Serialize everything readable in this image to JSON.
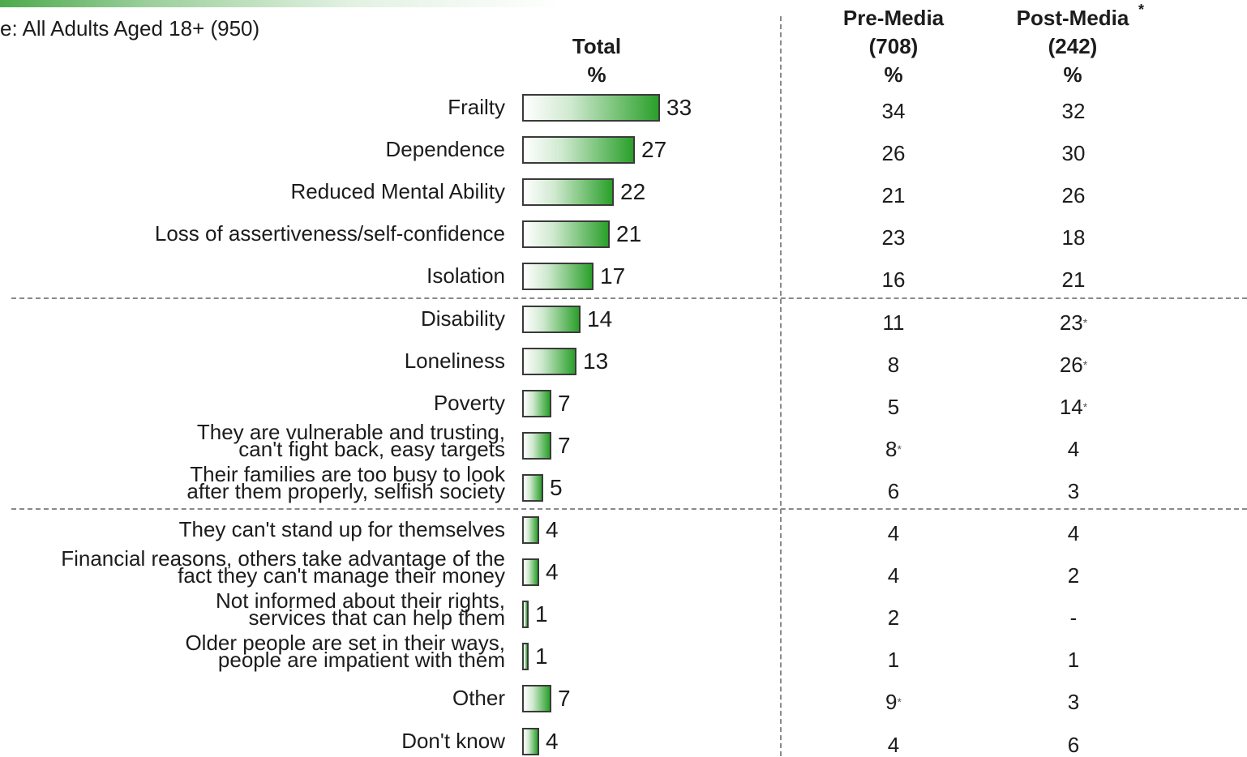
{
  "base_text": "e: All Adults Aged 18+ (950)",
  "columns": {
    "total": {
      "line1": "Total",
      "line2": "%"
    },
    "pre": {
      "line1": "Pre-Media",
      "line2": "(708)",
      "line3": "%"
    },
    "post": {
      "line1": "Post-Media",
      "line2": "(242)",
      "line3": "%",
      "marker": "*"
    }
  },
  "sig_marker": "*",
  "chart_data": {
    "type": "bar",
    "orientation": "horizontal",
    "xlim": [
      0,
      33
    ],
    "categories": [
      [
        "Frailty"
      ],
      [
        "Dependence"
      ],
      [
        "Reduced Mental Ability"
      ],
      [
        "Loss of assertiveness/self-confidence"
      ],
      [
        "Isolation"
      ],
      [
        "Disability"
      ],
      [
        "Loneliness"
      ],
      [
        "Poverty"
      ],
      [
        "They are vulnerable and trusting,",
        "can't fight back, easy targets"
      ],
      [
        "Their families are too busy to look",
        "after them properly, selfish society"
      ],
      [
        "They can't stand up for themselves"
      ],
      [
        "Financial reasons, others take advantage of the",
        "fact they can't manage their money"
      ],
      [
        "Not informed about their rights,",
        "services that can help them"
      ],
      [
        "Older people are set in their ways,",
        "people are impatient with them"
      ],
      [
        "Other"
      ],
      [
        "Don't know"
      ]
    ],
    "series": [
      {
        "name": "Total",
        "values": [
          33,
          27,
          22,
          21,
          17,
          14,
          13,
          7,
          7,
          5,
          4,
          4,
          1,
          1,
          7,
          4
        ]
      }
    ],
    "bar_color": "#2aa02a"
  },
  "table": {
    "pre_media": [
      "34",
      "26",
      "21",
      "23",
      "16",
      "11",
      "8",
      "5",
      "8",
      "6",
      "4",
      "4",
      "2",
      "1",
      "9",
      "4"
    ],
    "pre_media_sig": [
      false,
      false,
      false,
      false,
      false,
      false,
      false,
      false,
      true,
      false,
      false,
      false,
      false,
      false,
      true,
      false
    ],
    "post_media": [
      "32",
      "30",
      "26",
      "18",
      "21",
      "23",
      "26",
      "14",
      "4",
      "3",
      "4",
      "2",
      "-",
      "1",
      "3",
      "6"
    ],
    "post_media_sig": [
      false,
      false,
      false,
      false,
      false,
      true,
      true,
      true,
      false,
      false,
      false,
      false,
      false,
      false,
      false,
      false
    ]
  },
  "group_breaks_after": [
    4,
    9
  ]
}
